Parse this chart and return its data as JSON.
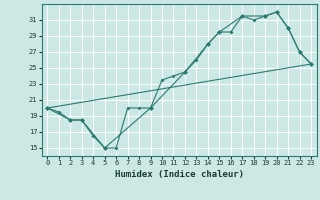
{
  "title": "",
  "xlabel": "Humidex (Indice chaleur)",
  "ylabel": "",
  "bg_color": "#cce8e4",
  "grid_color": "#ffffff",
  "line_color": "#2a7a6f",
  "x_ticks": [
    0,
    1,
    2,
    3,
    4,
    5,
    6,
    7,
    8,
    9,
    10,
    11,
    12,
    13,
    14,
    15,
    16,
    17,
    18,
    19,
    20,
    21,
    22,
    23
  ],
  "y_ticks": [
    15,
    17,
    19,
    21,
    23,
    25,
    27,
    29,
    31
  ],
  "ylim": [
    14.0,
    33.0
  ],
  "xlim": [
    -0.5,
    23.5
  ],
  "curve1_x": [
    0,
    1,
    2,
    3,
    4,
    5,
    6,
    7,
    8,
    9,
    10,
    11,
    12,
    13,
    14,
    15,
    16,
    17,
    18,
    19,
    20,
    21,
    22,
    23
  ],
  "curve1_y": [
    20.0,
    19.5,
    18.5,
    18.5,
    16.5,
    15.0,
    15.0,
    20.0,
    20.0,
    20.0,
    23.5,
    24.0,
    24.5,
    26.0,
    28.0,
    29.5,
    29.5,
    31.5,
    31.0,
    31.5,
    32.0,
    30.0,
    27.0,
    25.5
  ],
  "curve2_x": [
    0,
    2,
    3,
    5,
    9,
    12,
    14,
    15,
    17,
    19,
    20,
    21,
    22,
    23
  ],
  "curve2_y": [
    20.0,
    18.5,
    18.5,
    15.0,
    20.0,
    24.5,
    28.0,
    29.5,
    31.5,
    31.5,
    32.0,
    30.0,
    27.0,
    25.5
  ],
  "line_x": [
    0,
    23
  ],
  "line_y": [
    20.0,
    25.5
  ]
}
